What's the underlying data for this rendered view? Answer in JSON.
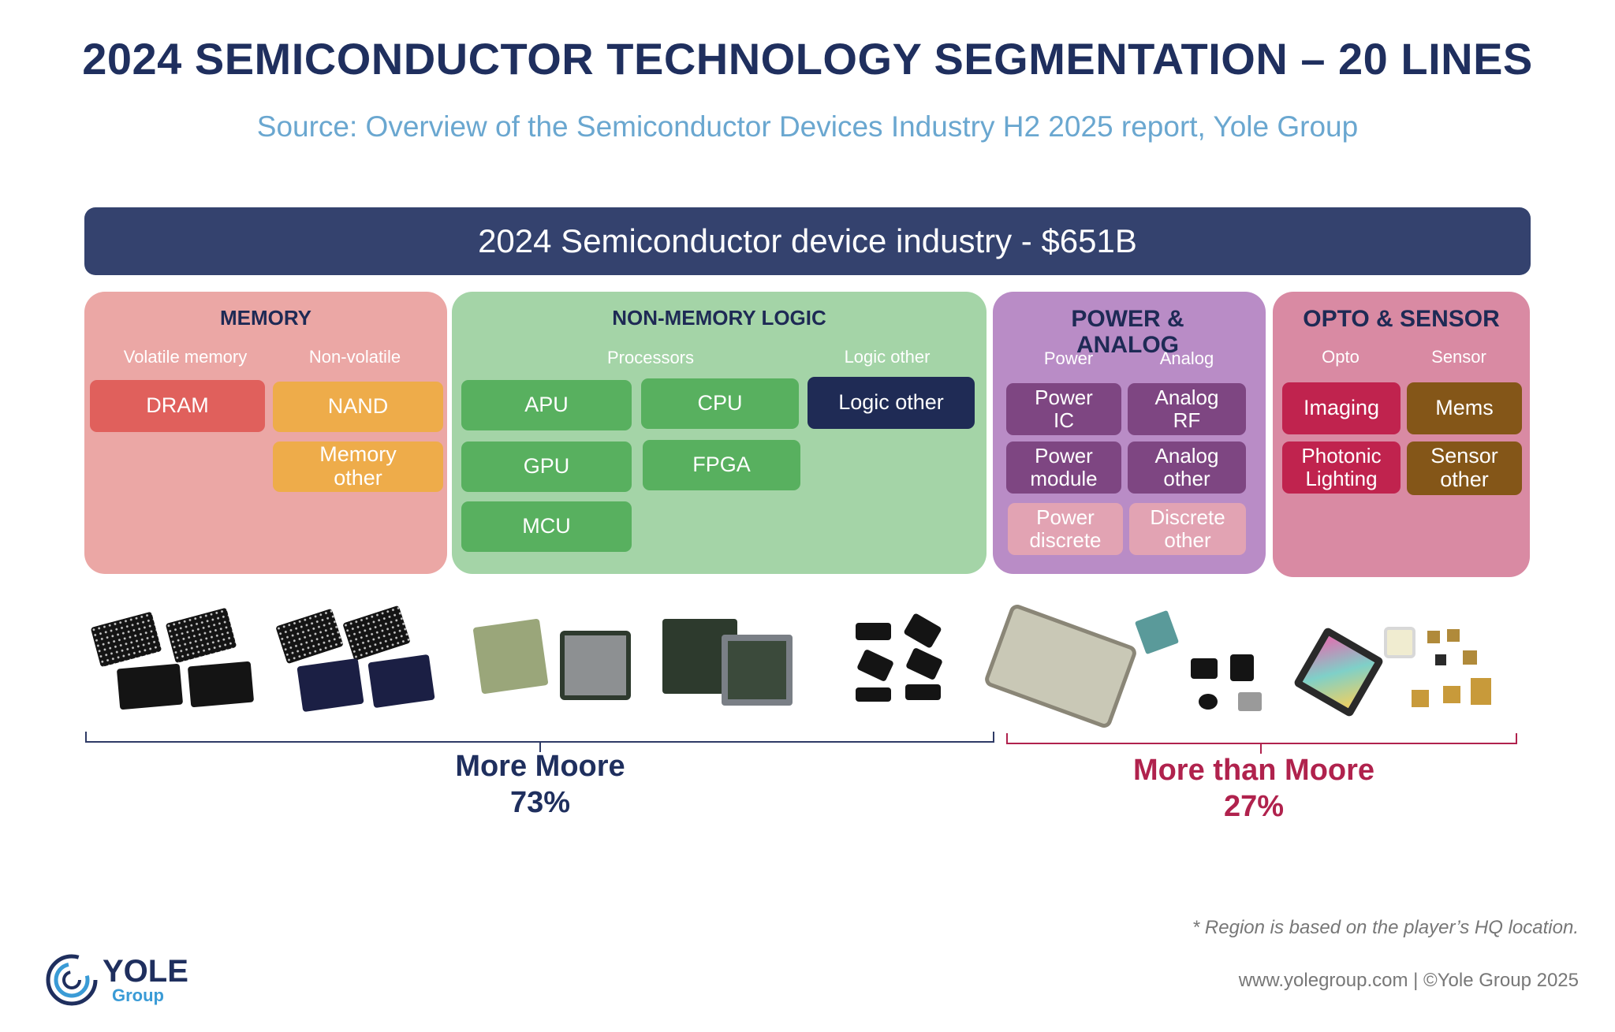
{
  "title": "2024 SEMICONDUCTOR TECHNOLOGY SEGMENTATION – 20 LINES",
  "subtitle": "Source: Overview of the Semiconductor Devices Industry H2 2025 report, Yole Group",
  "banner": "2024 Semiconductor device industry - $651B",
  "memory": {
    "title": "MEMORY",
    "sub_volatile": "Volatile memory",
    "sub_nonvolatile": "Non-volatile",
    "dram": "DRAM",
    "nand": "NAND",
    "memory_other": "Memory other"
  },
  "logic": {
    "title": "NON-MEMORY LOGIC",
    "sub_processors": "Processors",
    "sub_logic_other": "Logic other",
    "apu": "APU",
    "cpu": "CPU",
    "gpu": "GPU",
    "fpga": "FPGA",
    "mcu": "MCU",
    "logic_other": "Logic other"
  },
  "power": {
    "title": "POWER & ANALOG",
    "sub_power": "Power",
    "sub_analog": "Analog",
    "power_ic": "Power IC",
    "analog_rf": "Analog RF",
    "power_module": "Power module",
    "analog_other": "Analog other",
    "power_discrete": "Power discrete",
    "discrete_other": "Discrete other"
  },
  "opto": {
    "title": "OPTO & SENSOR",
    "sub_opto": "Opto",
    "sub_sensor": "Sensor",
    "imaging": "Imaging",
    "mems": "Mems",
    "photonic_lighting": "Photonic Lighting",
    "sensor_other": "Sensor other"
  },
  "groups": {
    "more_moore_label": "More Moore",
    "more_moore_pct": "73%",
    "more_than_moore_label": "More than Moore",
    "more_than_moore_pct": "27%"
  },
  "footnote": "* Region is based on the player’s HQ location.",
  "copyright": "www.yolegroup.com | ©Yole Group 2025",
  "logo": {
    "word": "YOLE",
    "group": "Group"
  },
  "colors": {
    "navy": "#1f2f5e",
    "banner": "#34426e",
    "memory_panel": "#eba7a5",
    "logic_panel": "#a4d4a7",
    "power_panel": "#b98cc6",
    "opto_panel": "#d98aa3",
    "more_than_moore": "#b0224d"
  }
}
